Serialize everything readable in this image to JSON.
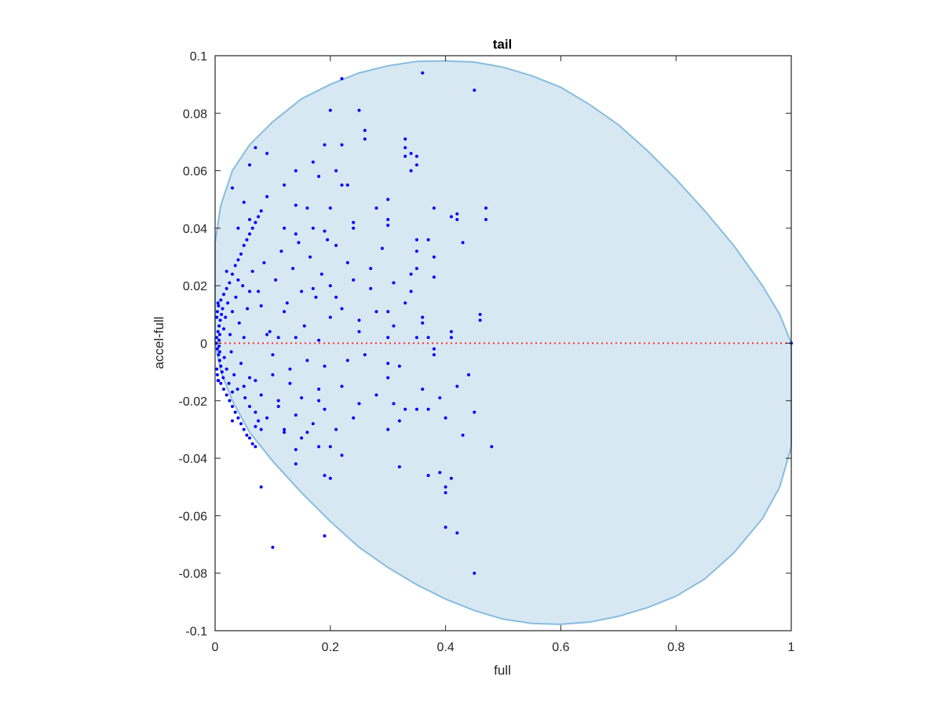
{
  "chart_data": {
    "type": "scatter",
    "title": "tail",
    "xlabel": "full",
    "ylabel": "accel-full",
    "xlim": [
      0,
      1
    ],
    "ylim": [
      -0.1,
      0.1
    ],
    "xticks": [
      "0",
      "0.2",
      "0.4",
      "0.6",
      "0.8",
      "1"
    ],
    "yticks": [
      "-0.1",
      "-0.08",
      "-0.06",
      "-0.04",
      "-0.02",
      "0",
      "0.02",
      "0.04",
      "0.06",
      "0.08",
      "0.1"
    ],
    "grid": false,
    "box": true,
    "colors": {
      "points": "#0000ff",
      "region_fill": "#d8e8f3",
      "region_edge": "#86bde0",
      "zero_line": "#ff2a2a",
      "axes": "#262626"
    },
    "region_outline": [
      [
        0.0,
        0.0
      ],
      [
        0.0,
        0.035
      ],
      [
        0.01,
        0.048
      ],
      [
        0.03,
        0.06
      ],
      [
        0.06,
        0.069
      ],
      [
        0.1,
        0.077
      ],
      [
        0.15,
        0.085
      ],
      [
        0.2,
        0.09
      ],
      [
        0.25,
        0.094
      ],
      [
        0.3,
        0.0965
      ],
      [
        0.35,
        0.098
      ],
      [
        0.4,
        0.0982
      ],
      [
        0.45,
        0.0978
      ],
      [
        0.5,
        0.096
      ],
      [
        0.55,
        0.093
      ],
      [
        0.6,
        0.089
      ],
      [
        0.65,
        0.083
      ],
      [
        0.7,
        0.076
      ],
      [
        0.75,
        0.067
      ],
      [
        0.8,
        0.057
      ],
      [
        0.85,
        0.046
      ],
      [
        0.9,
        0.034
      ],
      [
        0.95,
        0.02
      ],
      [
        0.98,
        0.01
      ],
      [
        1.0,
        0.0
      ],
      [
        1.0,
        -0.036
      ],
      [
        0.98,
        -0.05
      ],
      [
        0.95,
        -0.061
      ],
      [
        0.9,
        -0.073
      ],
      [
        0.85,
        -0.082
      ],
      [
        0.8,
        -0.088
      ],
      [
        0.75,
        -0.092
      ],
      [
        0.7,
        -0.095
      ],
      [
        0.65,
        -0.097
      ],
      [
        0.6,
        -0.0978
      ],
      [
        0.55,
        -0.0975
      ],
      [
        0.5,
        -0.096
      ],
      [
        0.45,
        -0.093
      ],
      [
        0.4,
        -0.089
      ],
      [
        0.35,
        -0.084
      ],
      [
        0.3,
        -0.078
      ],
      [
        0.25,
        -0.071
      ],
      [
        0.2,
        -0.062
      ],
      [
        0.15,
        -0.052
      ],
      [
        0.1,
        -0.041
      ],
      [
        0.06,
        -0.031
      ],
      [
        0.03,
        -0.02
      ],
      [
        0.01,
        -0.01
      ],
      [
        0.0,
        0.0
      ]
    ],
    "zero_line": {
      "y": 0,
      "x_from": 0,
      "x_to": 1,
      "style": "dotted"
    },
    "points": [
      [
        0.36,
        0.094
      ],
      [
        0.45,
        0.088
      ],
      [
        0.22,
        0.092
      ],
      [
        0.2,
        0.081
      ],
      [
        0.25,
        0.081
      ],
      [
        0.26,
        0.074
      ],
      [
        0.26,
        0.071
      ],
      [
        0.33,
        0.071
      ],
      [
        0.07,
        0.068
      ],
      [
        0.09,
        0.066
      ],
      [
        0.19,
        0.069
      ],
      [
        0.22,
        0.069
      ],
      [
        0.33,
        0.068
      ],
      [
        0.34,
        0.066
      ],
      [
        0.06,
        0.062
      ],
      [
        0.17,
        0.063
      ],
      [
        0.35,
        0.065
      ],
      [
        0.33,
        0.065
      ],
      [
        0.14,
        0.06
      ],
      [
        0.21,
        0.06
      ],
      [
        0.35,
        0.062
      ],
      [
        0.34,
        0.06
      ],
      [
        0.03,
        0.054
      ],
      [
        0.12,
        0.055
      ],
      [
        0.22,
        0.055
      ],
      [
        0.23,
        0.055
      ],
      [
        0.18,
        0.058
      ],
      [
        0.09,
        0.051
      ],
      [
        0.3,
        0.05
      ],
      [
        0.05,
        0.049
      ],
      [
        0.14,
        0.048
      ],
      [
        0.16,
        0.047
      ],
      [
        0.2,
        0.047
      ],
      [
        0.28,
        0.047
      ],
      [
        0.38,
        0.047
      ],
      [
        0.47,
        0.047
      ],
      [
        0.41,
        0.044
      ],
      [
        0.42,
        0.045
      ],
      [
        0.42,
        0.043
      ],
      [
        0.47,
        0.043
      ],
      [
        0.3,
        0.043
      ],
      [
        0.24,
        0.042
      ],
      [
        0.24,
        0.04
      ],
      [
        0.3,
        0.041
      ],
      [
        0.06,
        0.043
      ],
      [
        0.08,
        0.046
      ],
      [
        0.04,
        0.04
      ],
      [
        0.12,
        0.04
      ],
      [
        0.17,
        0.04
      ],
      [
        0.19,
        0.039
      ],
      [
        0.14,
        0.038
      ],
      [
        0.35,
        0.036
      ],
      [
        0.37,
        0.036
      ],
      [
        0.43,
        0.035
      ],
      [
        0.21,
        0.034
      ],
      [
        0.35,
        0.032
      ],
      [
        0.27,
        0.026
      ],
      [
        0.35,
        0.026
      ],
      [
        0.34,
        0.024
      ],
      [
        0.38,
        0.023
      ],
      [
        0.24,
        0.022
      ],
      [
        0.31,
        0.021
      ],
      [
        0.2,
        0.02
      ],
      [
        0.17,
        0.019
      ],
      [
        0.15,
        0.018
      ],
      [
        0.33,
        0.014
      ],
      [
        0.3,
        0.011
      ],
      [
        0.28,
        0.011
      ],
      [
        0.36,
        0.009
      ],
      [
        0.36,
        0.007
      ],
      [
        0.46,
        0.01
      ],
      [
        0.46,
        0.008
      ],
      [
        0.25,
        0.008
      ],
      [
        0.22,
        0.012
      ],
      [
        0.2,
        0.009
      ],
      [
        0.12,
        0.011
      ],
      [
        0.08,
        0.013
      ],
      [
        0.06,
        0.018
      ],
      [
        0.04,
        0.022
      ],
      [
        0.02,
        0.025
      ],
      [
        0.41,
        0.004
      ],
      [
        0.41,
        0.002
      ],
      [
        0.37,
        0.002
      ],
      [
        0.35,
        0.002
      ],
      [
        0.3,
        0.002
      ],
      [
        0.18,
        0.001
      ],
      [
        0.14,
        0.002
      ],
      [
        0.11,
        0.002
      ],
      [
        0.09,
        0.003
      ],
      [
        0.05,
        0.002
      ],
      [
        0.38,
        -0.002
      ],
      [
        0.38,
        -0.004
      ],
      [
        0.3,
        -0.007
      ],
      [
        0.23,
        -0.006
      ],
      [
        0.19,
        -0.008
      ],
      [
        0.13,
        -0.009
      ],
      [
        0.1,
        -0.011
      ],
      [
        0.07,
        -0.013
      ],
      [
        0.05,
        -0.015
      ],
      [
        0.03,
        -0.017
      ],
      [
        0.44,
        -0.011
      ],
      [
        0.42,
        -0.015
      ],
      [
        0.39,
        -0.019
      ],
      [
        0.31,
        -0.021
      ],
      [
        0.25,
        -0.021
      ],
      [
        0.18,
        -0.02
      ],
      [
        0.15,
        -0.019
      ],
      [
        0.11,
        -0.022
      ],
      [
        0.06,
        -0.022
      ],
      [
        0.03,
        -0.027
      ],
      [
        0.37,
        -0.023
      ],
      [
        0.35,
        -0.023
      ],
      [
        0.33,
        -0.023
      ],
      [
        0.45,
        -0.024
      ],
      [
        0.32,
        -0.027
      ],
      [
        0.3,
        -0.03
      ],
      [
        0.21,
        -0.03
      ],
      [
        0.16,
        -0.031
      ],
      [
        0.12,
        -0.031
      ],
      [
        0.08,
        -0.03
      ],
      [
        0.43,
        -0.032
      ],
      [
        0.48,
        -0.036
      ],
      [
        0.14,
        -0.037
      ],
      [
        0.18,
        -0.036
      ],
      [
        0.07,
        -0.036
      ],
      [
        0.14,
        -0.042
      ],
      [
        0.22,
        -0.039
      ],
      [
        0.32,
        -0.043
      ],
      [
        0.37,
        -0.046
      ],
      [
        0.39,
        -0.045
      ],
      [
        0.41,
        -0.047
      ],
      [
        0.4,
        -0.05
      ],
      [
        0.4,
        -0.052
      ],
      [
        0.19,
        -0.046
      ],
      [
        0.2,
        -0.047
      ],
      [
        0.08,
        -0.05
      ],
      [
        0.4,
        -0.064
      ],
      [
        0.42,
        -0.066
      ],
      [
        0.19,
        -0.067
      ],
      [
        0.1,
        -0.071
      ],
      [
        0.45,
        -0.08
      ],
      [
        1.0,
        0.0
      ],
      [
        0.002,
        0.0
      ],
      [
        0.003,
        0.002
      ],
      [
        0.004,
        -0.002
      ],
      [
        0.005,
        0.004
      ],
      [
        0.006,
        -0.004
      ],
      [
        0.007,
        0.006
      ],
      [
        0.008,
        -0.006
      ],
      [
        0.009,
        0.008
      ],
      [
        0.01,
        -0.008
      ],
      [
        0.011,
        0.01
      ],
      [
        0.012,
        -0.01
      ],
      [
        0.013,
        0.012
      ],
      [
        0.014,
        -0.012
      ],
      [
        0.015,
        0.005
      ],
      [
        0.016,
        -0.005
      ],
      [
        0.018,
        0.009
      ],
      [
        0.02,
        -0.009
      ],
      [
        0.022,
        0.014
      ],
      [
        0.024,
        -0.014
      ],
      [
        0.026,
        0.003
      ],
      [
        0.028,
        -0.003
      ],
      [
        0.03,
        0.011
      ],
      [
        0.033,
        -0.011
      ],
      [
        0.036,
        0.016
      ],
      [
        0.039,
        -0.016
      ],
      [
        0.042,
        0.007
      ],
      [
        0.045,
        -0.007
      ],
      [
        0.048,
        0.02
      ],
      [
        0.052,
        -0.019
      ],
      [
        0.056,
        0.012
      ],
      [
        0.06,
        -0.012
      ],
      [
        0.065,
        0.025
      ],
      [
        0.07,
        -0.024
      ],
      [
        0.075,
        0.018
      ],
      [
        0.08,
        -0.018
      ],
      [
        0.085,
        0.028
      ],
      [
        0.09,
        -0.026
      ],
      [
        0.095,
        0.004
      ],
      [
        0.1,
        -0.004
      ],
      [
        0.105,
        0.022
      ],
      [
        0.11,
        -0.02
      ],
      [
        0.115,
        0.032
      ],
      [
        0.12,
        -0.03
      ],
      [
        0.125,
        0.014
      ],
      [
        0.13,
        -0.014
      ],
      [
        0.135,
        0.026
      ],
      [
        0.14,
        -0.025
      ],
      [
        0.145,
        0.035
      ],
      [
        0.15,
        -0.033
      ],
      [
        0.155,
        0.006
      ],
      [
        0.16,
        -0.006
      ],
      [
        0.165,
        0.03
      ],
      [
        0.17,
        -0.028
      ],
      [
        0.175,
        0.016
      ],
      [
        0.18,
        -0.016
      ],
      [
        0.185,
        0.024
      ],
      [
        0.19,
        -0.023
      ],
      [
        0.195,
        0.036
      ],
      [
        0.2,
        -0.036
      ],
      [
        0.21,
        0.016
      ],
      [
        0.22,
        -0.015
      ],
      [
        0.23,
        0.028
      ],
      [
        0.24,
        -0.026
      ],
      [
        0.25,
        0.004
      ],
      [
        0.26,
        -0.004
      ],
      [
        0.27,
        0.019
      ],
      [
        0.28,
        -0.018
      ],
      [
        0.29,
        0.033
      ],
      [
        0.3,
        -0.012
      ],
      [
        0.31,
        0.006
      ],
      [
        0.32,
        -0.008
      ],
      [
        0.34,
        0.018
      ],
      [
        0.36,
        -0.016
      ],
      [
        0.38,
        0.03
      ],
      [
        0.4,
        -0.026
      ],
      [
        0.005,
        0.014
      ],
      [
        0.01,
        0.015
      ],
      [
        0.015,
        0.017
      ],
      [
        0.02,
        0.019
      ],
      [
        0.025,
        0.021
      ],
      [
        0.005,
        -0.013
      ],
      [
        0.01,
        -0.014
      ],
      [
        0.015,
        -0.016
      ],
      [
        0.02,
        -0.018
      ],
      [
        0.025,
        -0.02
      ],
      [
        0.03,
        0.024
      ],
      [
        0.035,
        0.027
      ],
      [
        0.04,
        0.029
      ],
      [
        0.045,
        0.031
      ],
      [
        0.05,
        0.034
      ],
      [
        0.03,
        -0.022
      ],
      [
        0.035,
        -0.024
      ],
      [
        0.04,
        -0.026
      ],
      [
        0.045,
        -0.028
      ],
      [
        0.05,
        -0.03
      ],
      [
        0.055,
        0.036
      ],
      [
        0.06,
        0.038
      ],
      [
        0.065,
        0.04
      ],
      [
        0.07,
        0.042
      ],
      [
        0.075,
        0.044
      ],
      [
        0.055,
        -0.032
      ],
      [
        0.06,
        -0.033
      ],
      [
        0.065,
        -0.035
      ],
      [
        0.07,
        -0.029
      ],
      [
        0.075,
        -0.027
      ],
      [
        0.003,
        0.009
      ],
      [
        0.004,
        0.011
      ],
      [
        0.006,
        0.013
      ],
      [
        0.007,
        0.001
      ],
      [
        0.008,
        0.003
      ],
      [
        0.003,
        -0.009
      ],
      [
        0.004,
        -0.011
      ],
      [
        0.006,
        -0.013
      ],
      [
        0.007,
        -0.001
      ],
      [
        0.008,
        -0.003
      ]
    ]
  }
}
